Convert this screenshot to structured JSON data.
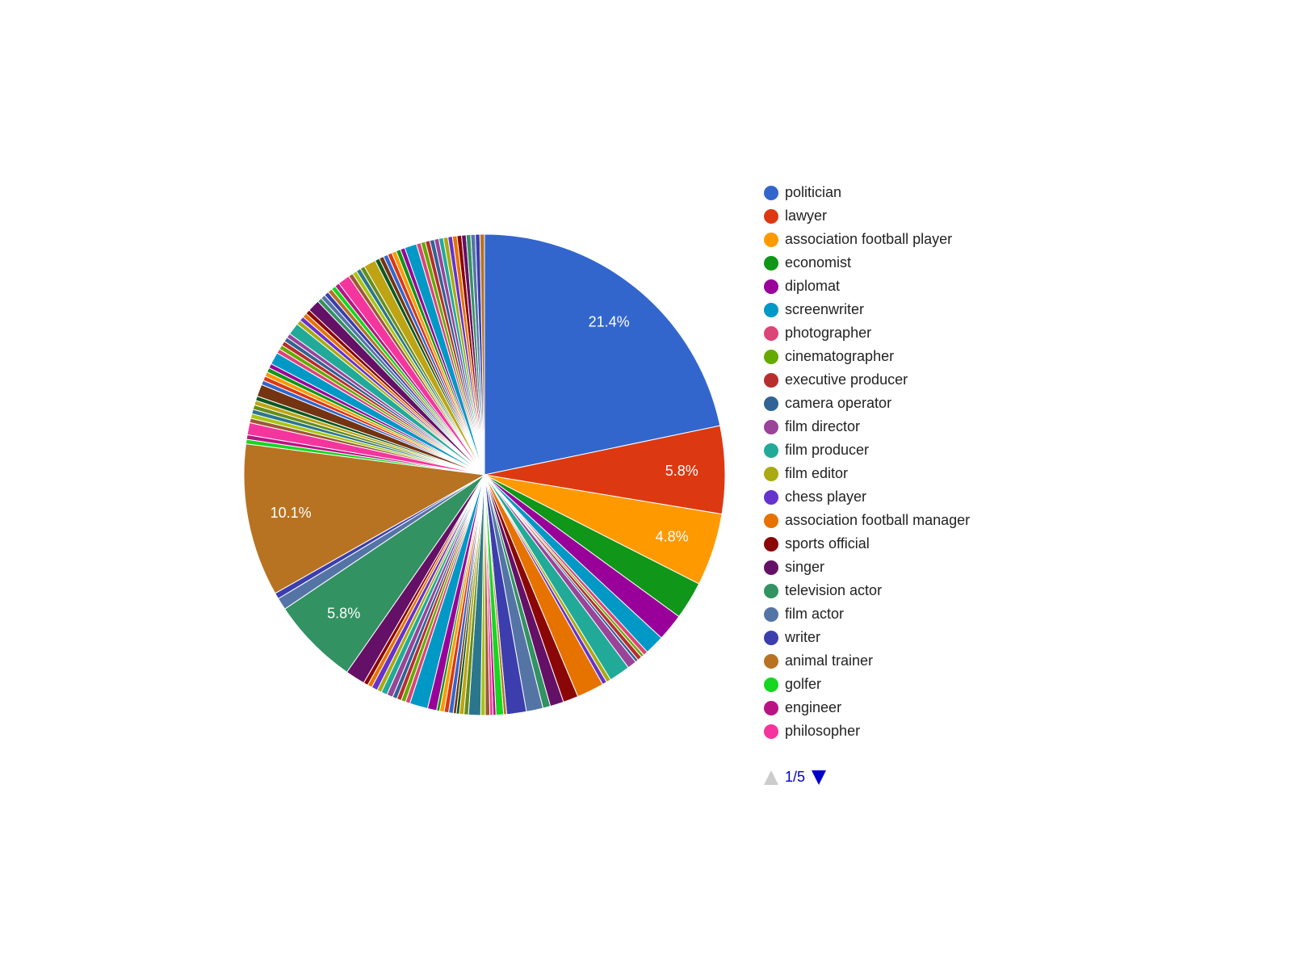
{
  "chart_data": {
    "type": "pie",
    "palette": [
      "#3366cc",
      "#dc3912",
      "#ff9900",
      "#109618",
      "#990099",
      "#0099c6",
      "#dd4477",
      "#66aa00",
      "#b82e2e",
      "#316395",
      "#994499",
      "#22aa99",
      "#aaaa11",
      "#6633cc",
      "#e67300",
      "#8b0707",
      "#651067",
      "#329262",
      "#5574a6",
      "#3b3eac",
      "#b77322",
      "#16d620",
      "#b91383",
      "#f4359e",
      "#9c5935",
      "#a9c413",
      "#2a778d",
      "#668d1c",
      "#bea413",
      "#0c5922",
      "#743411"
    ],
    "values": [
      21.4,
      5.8,
      4.8,
      2.5,
      1.8,
      1.3,
      0.3,
      0.2,
      0.3,
      0.2,
      0.6,
      1.4,
      0.3,
      0.3,
      1.8,
      1.0,
      0.9,
      0.5,
      1.1,
      1.3,
      0.2,
      0.5,
      0.2,
      0.2,
      0.3,
      0.3,
      0.8,
      0.3,
      0.3,
      0.2,
      0.2,
      0.3,
      0.3,
      0.3,
      0.2,
      0.6,
      1.2,
      0.3,
      0.3,
      0.3,
      0.3,
      0.4,
      0.4,
      0.3,
      0.4,
      0.3,
      0.3,
      1.3,
      5.8,
      0.8,
      0.4,
      10.1,
      0.3,
      0.3,
      0.8,
      0.3,
      0.3,
      0.3,
      0.3,
      0.3,
      0.3,
      0.8,
      0.3,
      0.3,
      0.3,
      0.3,
      0.3,
      0.8,
      0.3,
      0.3,
      0.3,
      0.3,
      0.3,
      0.8,
      0.3,
      0.3,
      0.3,
      0.3,
      0.8,
      0.3,
      0.3,
      0.3,
      0.3,
      0.3,
      0.3,
      0.8,
      0.3,
      0.3,
      0.3,
      0.3,
      0.8,
      0.3,
      0.3,
      0.3,
      0.3,
      0.3,
      0.3,
      0.3,
      0.8,
      0.3,
      0.3,
      0.3,
      0.3,
      0.3,
      0.3,
      0.3,
      0.3,
      0.3,
      0.3,
      0.3,
      0.3,
      0.3,
      0.3,
      0.3
    ],
    "data_labels": [
      {
        "index": 0,
        "text": "21.4%"
      },
      {
        "index": 1,
        "text": "5.8%"
      },
      {
        "index": 2,
        "text": "4.8%"
      },
      {
        "index": 48,
        "text": "5.8%"
      },
      {
        "index": 51,
        "text": "10.1%"
      }
    ],
    "legend": {
      "position": "right",
      "items": [
        "politician",
        "lawyer",
        "association football player",
        "economist",
        "diplomat",
        "screenwriter",
        "photographer",
        "cinematographer",
        "executive producer",
        "camera operator",
        "film director",
        "film producer",
        "film editor",
        "chess player",
        "association football manager",
        "sports official",
        "singer",
        "television actor",
        "film actor",
        "writer",
        "animal trainer",
        "golfer",
        "engineer",
        "philosopher"
      ],
      "page": "1/5"
    }
  }
}
